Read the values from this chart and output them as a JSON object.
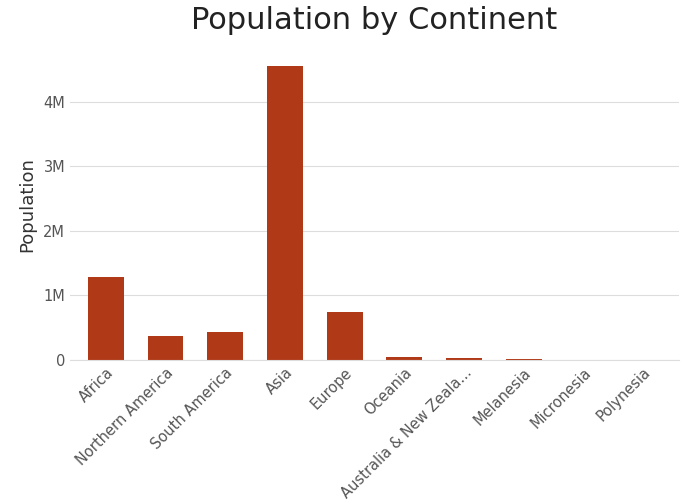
{
  "categories": [
    "Africa",
    "Northern America",
    "South America",
    "Asia",
    "Europe",
    "Oceania",
    "Australia & New Zeala...",
    "Melanesia",
    "Micronesia",
    "Polynesia"
  ],
  "values": [
    1280000,
    370000,
    430000,
    4560000,
    740000,
    42000,
    30000,
    10000,
    600,
    700
  ],
  "bar_color": "#b03a17",
  "title": "Population by Continent",
  "ylabel": "Population",
  "background_color": "#ffffff",
  "title_fontsize": 22,
  "axis_label_fontsize": 13,
  "tick_fontsize": 10.5,
  "grid_color": "#dddddd",
  "ylim_max": 4800000,
  "ytick_step": 1000000
}
